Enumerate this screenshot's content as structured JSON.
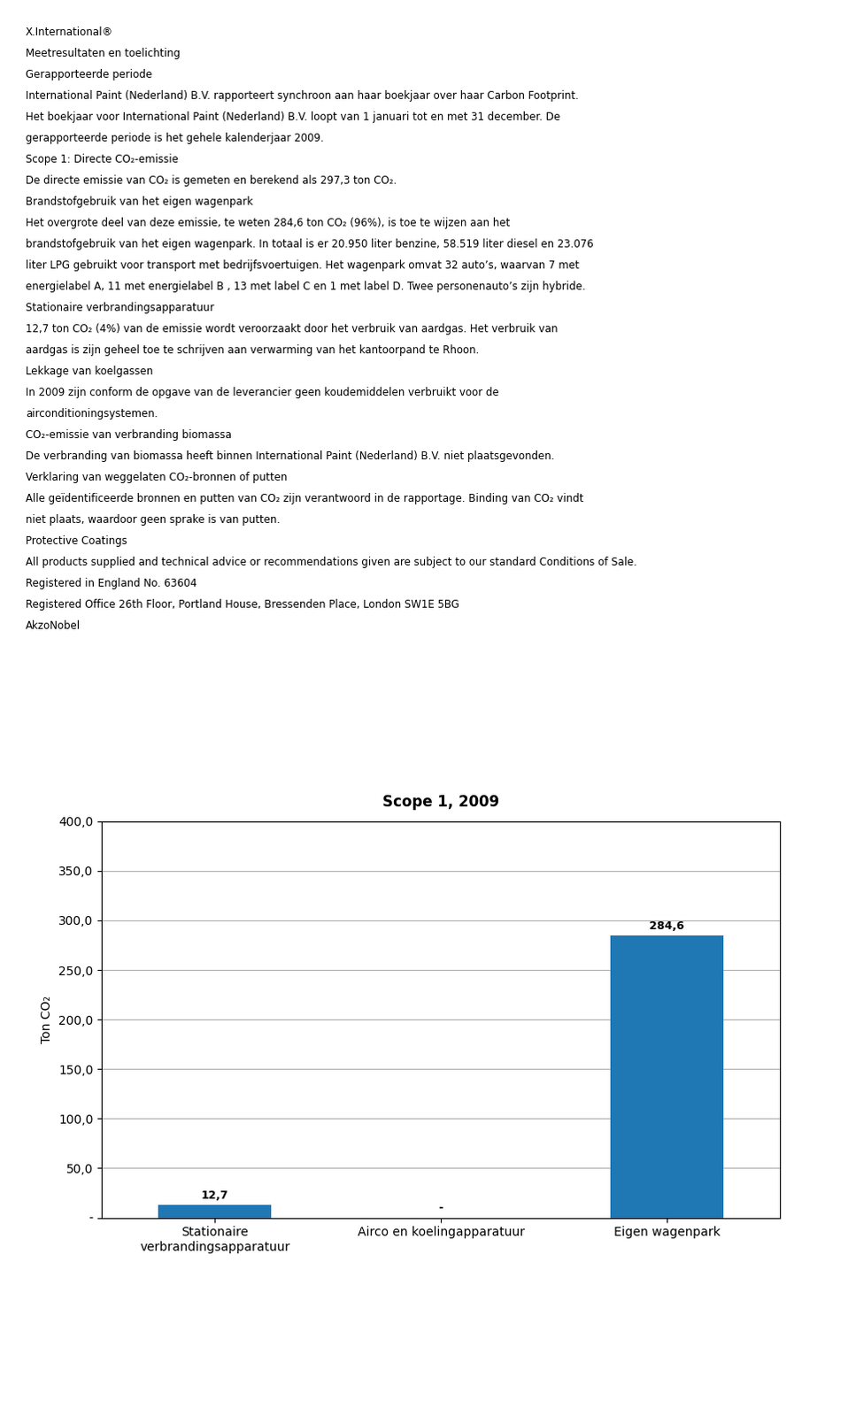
{
  "chart_data": {
    "type": "bar",
    "title": "Scope 1, 2009",
    "ylabel": "Ton CO₂",
    "categories": [
      "Stationaire\nverbrandingsapparatuur",
      "Airco en koelingapparatuur",
      "Eigen wagenpark"
    ],
    "values": [
      12.7,
      0.0,
      284.6
    ],
    "value_labels": [
      "12,7",
      "-",
      "284,6"
    ],
    "data_labels": true,
    "ylim": [
      0,
      400
    ],
    "yticks": [
      {
        "value": 0,
        "label": "-"
      },
      {
        "value": 50,
        "label": "50,0"
      },
      {
        "value": 100,
        "label": "100,0"
      },
      {
        "value": 150,
        "label": "150,0"
      },
      {
        "value": 200,
        "label": "200,0"
      },
      {
        "value": 250,
        "label": "250,0"
      },
      {
        "value": 300,
        "label": "300,0"
      },
      {
        "value": 350,
        "label": "350,0"
      },
      {
        "value": 400,
        "label": "400,0"
      }
    ],
    "grid": true,
    "annotations": [
      "X.International®",
      "Meetresultaten en toelichting",
      "Gerapporteerde periode",
      "International Paint (Nederland) B.V. rapporteert synchroon aan haar boekjaar over haar Carbon Footprint.",
      "Het boekjaar voor International Paint (Nederland) B.V. loopt van 1 januari tot en met 31 december. De",
      "gerapporteerde periode is het gehele kalenderjaar 2009.",
      "Scope 1: Directe CO₂-emissie",
      "De directe emissie van CO₂ is gemeten en berekend als 297,3 ton CO₂.",
      "Brandstofgebruik van het eigen wagenpark",
      "Het overgrote deel van deze emissie, te weten 284,6 ton CO₂ (96%), is toe te wijzen aan het",
      "brandstofgebruik van het eigen wagenpark. In totaal is er 20.950 liter benzine, 58.519 liter diesel en 23.076",
      "liter LPG gebruikt voor transport met bedrijfsvoertuigen. Het wagenpark omvat 32 auto’s, waarvan 7 met",
      "energielabel A, 11 met energielabel B , 13 met label C en 1 met label D. Twee personenauto’s zijn hybride.",
      "Stationaire verbrandingsapparatuur",
      "12,7 ton CO₂ (4%) van de emissie wordt veroorzaakt door het verbruik van aardgas. Het verbruik van",
      "aardgas is zijn geheel toe te schrijven aan verwarming van het kantoorpand te Rhoon.",
      "Lekkage van koelgassen",
      "In 2009 zijn conform de opgave van de leverancier geen koudemiddelen verbruikt voor de",
      "airconditioningsystemen.",
      "CO₂-emissie van verbranding biomassa",
      "De verbranding van biomassa heeft binnen International Paint (Nederland) B.V. niet plaatsgevonden.",
      "Verklaring van weggelaten CO₂-bronnen of putten",
      "Alle geïdentificeerde bronnen en putten van CO₂ zijn verantwoord in de rapportage. Binding van CO₂ vindt",
      "niet plaats, waardoor geen sprake is van putten.",
      "Protective Coatings",
      "All products supplied and technical advice or recommendations given are subject to our standard Conditions of Sale.",
      "Registered in England No. 63604",
      "Registered Office 26th Floor, Portland House, Bressenden Place, London SW1E 5BG",
      "AkzoNobel"
    ]
  }
}
